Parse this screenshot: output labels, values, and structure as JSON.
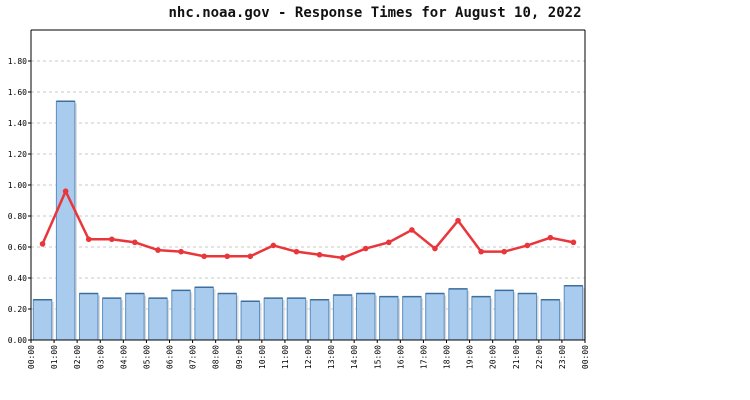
{
  "chart_data": {
    "type": "bar",
    "title": "nhc.noaa.gov - Response Times for August 10, 2022",
    "xlabel": "",
    "ylabel": "",
    "ylim": [
      0,
      2.0
    ],
    "yticks": [
      "0.00",
      "0.20",
      "0.40",
      "0.60",
      "0.80",
      "1.00",
      "1.20",
      "1.40",
      "1.60",
      "1.80"
    ],
    "grid": true,
    "legend": "none",
    "categories": [
      "00:00",
      "01:00",
      "02:00",
      "03:00",
      "04:00",
      "05:00",
      "06:00",
      "07:00",
      "08:00",
      "09:00",
      "10:00",
      "11:00",
      "12:00",
      "13:00",
      "14:00",
      "15:00",
      "16:00",
      "17:00",
      "18:00",
      "19:00",
      "20:00",
      "21:00",
      "22:00",
      "23:00"
    ],
    "xtick_labels": [
      "00:00",
      "01:00",
      "02:00",
      "03:00",
      "04:00",
      "05:00",
      "06:00",
      "07:00",
      "08:00",
      "09:00",
      "10:00",
      "11:00",
      "12:00",
      "13:00",
      "14:00",
      "15:00",
      "16:00",
      "17:00",
      "18:00",
      "19:00",
      "20:00",
      "21:00",
      "22:00",
      "23:00",
      "00:00"
    ],
    "series": [
      {
        "type": "bar",
        "values": [
          0.26,
          1.54,
          0.3,
          0.27,
          0.3,
          0.27,
          0.32,
          0.34,
          0.3,
          0.25,
          0.27,
          0.27,
          0.26,
          0.29,
          0.3,
          0.28,
          0.28,
          0.3,
          0.33,
          0.28,
          0.32,
          0.3,
          0.26,
          0.35
        ]
      },
      {
        "type": "line",
        "values": [
          0.62,
          0.96,
          0.65,
          0.65,
          0.63,
          0.58,
          0.57,
          0.54,
          0.54,
          0.54,
          0.61,
          0.57,
          0.55,
          0.53,
          0.59,
          0.63,
          0.71,
          0.59,
          0.77,
          0.57,
          0.57,
          0.61,
          0.66,
          0.63
        ]
      }
    ],
    "colors": {
      "bar_fill": "#a8cbee",
      "bar_stroke": "#5b8fc0",
      "bar_top_edge": "#3d6f9e",
      "line": "#e8363b",
      "grid": "#c8c8c8",
      "axis": "#000000"
    }
  }
}
